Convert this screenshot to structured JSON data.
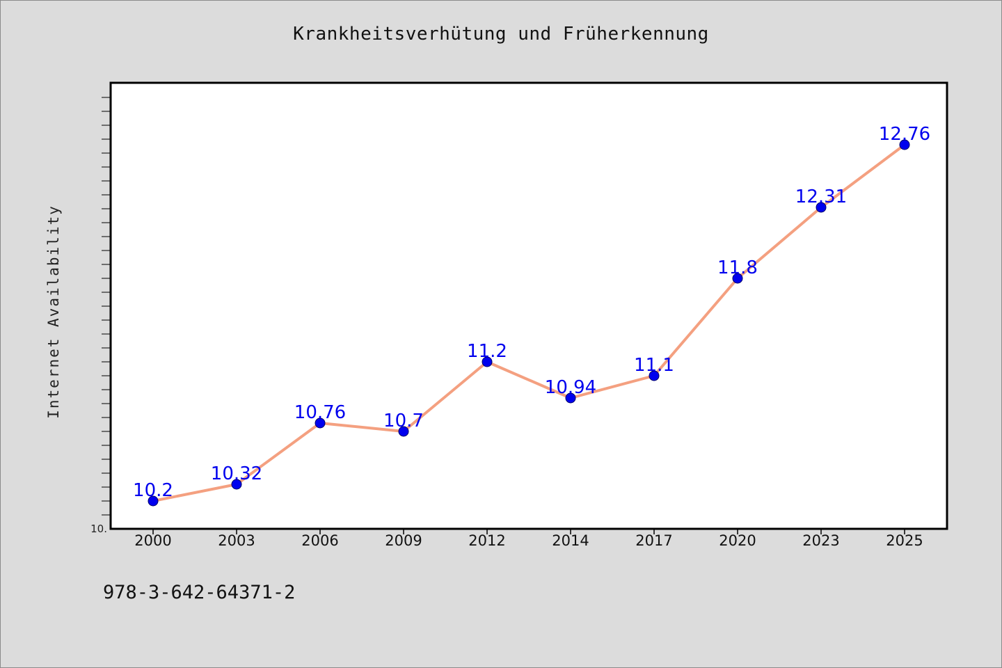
{
  "chart_data": {
    "type": "line",
    "title": "Krankheitsverhütung und Früherkennung",
    "ylabel": "Internet Availability",
    "xlabel": "",
    "categories": [
      "2000",
      "2003",
      "2006",
      "2009",
      "2012",
      "2014",
      "2017",
      "2020",
      "2023",
      "2025"
    ],
    "series": [
      {
        "values": [
          10.2,
          10.32,
          10.76,
          10.7,
          11.2,
          10.94,
          11.1,
          11.8,
          12.31,
          12.76
        ],
        "data_labels": [
          "10.2",
          "10.32",
          "10.76",
          "10.7",
          "11.2",
          "10.94",
          "11.1",
          "11.8",
          "12.31",
          "12.76"
        ]
      }
    ],
    "ylim": [
      10.0,
      13.2
    ],
    "y_tick_labels": [
      "10."
    ],
    "grid": false,
    "colors": {
      "line": "#f4a080",
      "marker": "#0000ee",
      "label": "#0000ee",
      "frame": "#000000"
    }
  },
  "footer": {
    "code": "978-3-642-64371-2"
  }
}
